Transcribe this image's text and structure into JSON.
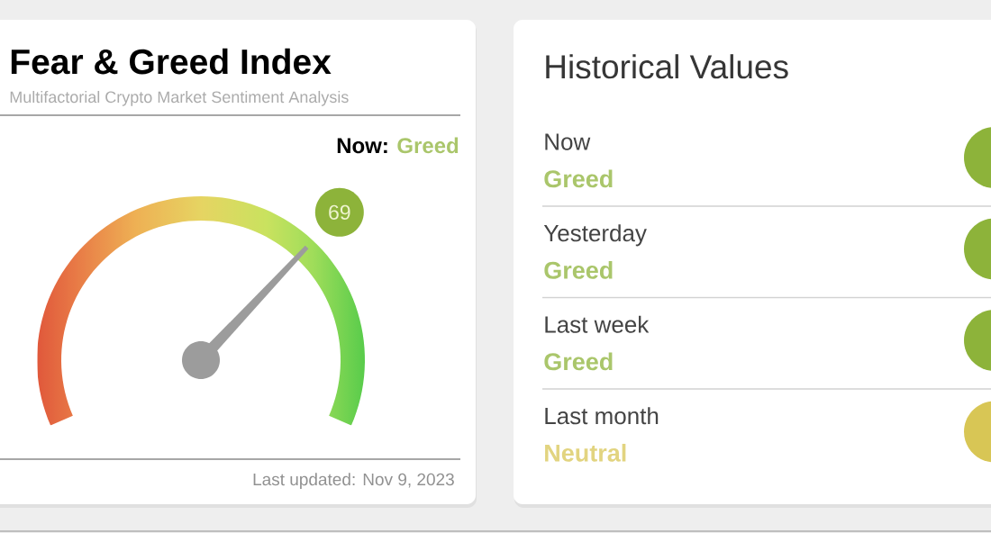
{
  "chart_data": [
    {
      "type": "other",
      "title": "Fear & Greed Index",
      "subtitle": "Multifactorial Crypto Market Sentiment Analysis",
      "values": [
        69
      ],
      "data_labels": true,
      "colors": [
        "#8db33a"
      ],
      "annotations": [
        "Now:",
        "Greed",
        "Last updated: Nov 9, 2023"
      ]
    },
    {
      "type": "other",
      "title": "Historical Values",
      "annotations": [
        "Now",
        "Greed",
        "Yesterday",
        "Greed",
        "Last week",
        "Greed",
        "Last month",
        "Neutral"
      ],
      "colors": [
        "#8db33a",
        "#8db33a",
        "#8db33a",
        "#d8c655"
      ]
    }
  ]
}
